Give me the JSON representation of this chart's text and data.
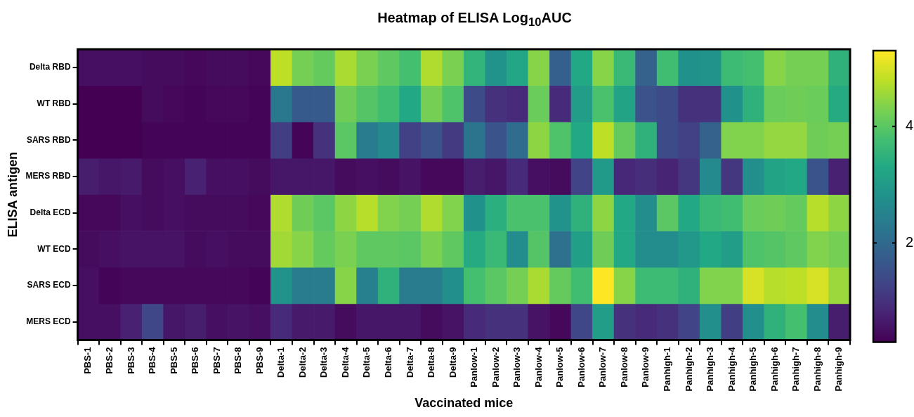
{
  "chart_data": {
    "type": "heatmap",
    "title": "Heatmap of ELISA Log$_{10}$AUC",
    "xlabel": "Vaccinated mice",
    "ylabel": "ELISA antigen",
    "categories": [
      "PBS-1",
      "PBS-2",
      "PBS-3",
      "PBS-4",
      "PBS-5",
      "PBS-6",
      "PBS-7",
      "PBS-8",
      "PBS-9",
      "Delta-1",
      "Delta-2",
      "Delta-3",
      "Delta-4",
      "Delta-5",
      "Delta-6",
      "Delta-7",
      "Delta-8",
      "Delta-9",
      "Panlow-1",
      "Panlow-2",
      "Panlow-3",
      "Panlow-4",
      "Panlow-5",
      "Panlow-6",
      "Panlow-7",
      "Panlow-8",
      "Panlow-9",
      "Panhigh-1",
      "Panhigh-2",
      "Panhigh-3",
      "Panhigh-4",
      "Panhigh-5",
      "Panhigh-6",
      "Panhigh-7",
      "Panhigh-8",
      "Panhigh-9"
    ],
    "y_categories": [
      "Delta RBD",
      "WT RBD",
      "SARS RBD",
      "MERS RBD",
      "Delta ECD",
      "WT ECD",
      "SARS ECD",
      "MERS ECD"
    ],
    "cells": [
      [
        0.5,
        0.5,
        0.5,
        0.45,
        0.45,
        0.4,
        0.45,
        0.45,
        0.4,
        4.8,
        4.25,
        4.1,
        4.65,
        4.3,
        4.05,
        3.8,
        4.7,
        4.3,
        3.55,
        2.85,
        3.25,
        4.4,
        1.8,
        3.3,
        4.4,
        3.65,
        1.85,
        3.75,
        2.8,
        2.85,
        3.7,
        3.8,
        4.4,
        4.25,
        4.25,
        3.5
      ],
      [
        0.3,
        0.3,
        0.3,
        0.45,
        0.4,
        0.35,
        0.4,
        0.4,
        0.35,
        2.3,
        1.7,
        1.7,
        4.2,
        3.95,
        3.75,
        3.3,
        4.25,
        3.9,
        1.45,
        1.0,
        0.9,
        4.15,
        0.9,
        3.05,
        3.85,
        3.2,
        1.55,
        1.45,
        1.0,
        1.0,
        2.8,
        3.5,
        4.15,
        4.2,
        4.15,
        3.35
      ],
      [
        0.3,
        0.3,
        0.3,
        0.35,
        0.35,
        0.35,
        0.35,
        0.35,
        0.35,
        1.2,
        0.35,
        1.0,
        4.0,
        2.35,
        2.65,
        1.25,
        1.55,
        1.15,
        2.2,
        1.6,
        2.05,
        4.45,
        3.9,
        3.3,
        4.8,
        4.1,
        3.5,
        1.45,
        1.25,
        1.85,
        4.35,
        4.35,
        4.5,
        4.5,
        4.2,
        4.25
      ],
      [
        0.7,
        0.6,
        0.65,
        0.45,
        0.5,
        0.75,
        0.5,
        0.5,
        0.45,
        0.6,
        0.6,
        0.6,
        0.45,
        0.5,
        0.45,
        0.55,
        0.4,
        0.4,
        0.7,
        0.6,
        0.9,
        0.5,
        0.45,
        1.3,
        3.0,
        0.85,
        0.95,
        0.8,
        1.1,
        2.65,
        1.1,
        2.75,
        3.2,
        3.3,
        1.6,
        0.75
      ],
      [
        0.4,
        0.4,
        0.5,
        0.45,
        0.5,
        0.45,
        0.45,
        0.45,
        0.4,
        4.7,
        4.2,
        4.0,
        4.45,
        4.75,
        4.35,
        4.25,
        4.7,
        4.35,
        2.8,
        3.45,
        3.85,
        3.85,
        2.85,
        3.5,
        4.45,
        3.3,
        2.7,
        4.0,
        3.3,
        3.65,
        3.75,
        4.15,
        4.2,
        4.1,
        4.75,
        4.45
      ],
      [
        0.45,
        0.5,
        0.55,
        0.55,
        0.55,
        0.45,
        0.5,
        0.45,
        0.45,
        4.6,
        4.4,
        4.1,
        4.3,
        4.05,
        4.05,
        4.0,
        4.3,
        4.05,
        3.35,
        3.65,
        2.7,
        3.95,
        2.15,
        3.1,
        4.2,
        3.3,
        2.7,
        2.7,
        2.95,
        3.3,
        3.05,
        3.9,
        3.95,
        4.05,
        4.35,
        4.25
      ],
      [
        0.5,
        0.35,
        0.4,
        0.4,
        0.4,
        0.4,
        0.4,
        0.4,
        0.35,
        2.85,
        2.35,
        2.35,
        4.4,
        2.45,
        3.5,
        2.35,
        2.35,
        2.75,
        3.8,
        4.0,
        4.25,
        4.65,
        4.1,
        3.75,
        5.3,
        4.4,
        3.7,
        3.7,
        3.5,
        4.35,
        4.35,
        5.0,
        4.75,
        4.8,
        5.0,
        4.55
      ],
      [
        0.5,
        0.5,
        0.75,
        1.35,
        0.6,
        0.7,
        0.5,
        0.55,
        0.5,
        0.9,
        0.65,
        0.65,
        0.45,
        0.6,
        0.6,
        0.6,
        0.45,
        0.55,
        0.9,
        1.0,
        1.0,
        0.55,
        0.4,
        1.35,
        3.05,
        1.0,
        0.9,
        1.0,
        1.3,
        2.75,
        1.2,
        2.75,
        3.5,
        3.8,
        2.7,
        0.7
      ]
    ],
    "clim": [
      0.3,
      5.3
    ],
    "cticks": [
      2,
      4
    ]
  }
}
